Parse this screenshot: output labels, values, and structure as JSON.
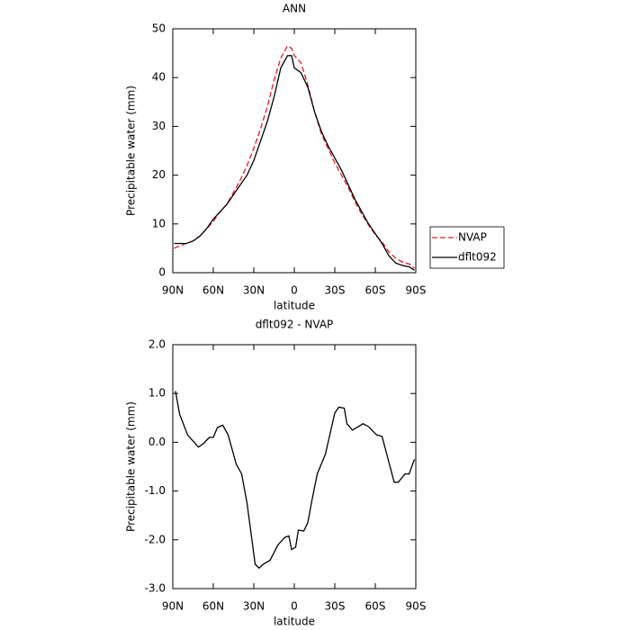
{
  "chart_data": [
    {
      "type": "line",
      "title": "ANN",
      "xlabel": "latitude",
      "ylabel": "Precipitable water (mm)",
      "x": [
        89,
        85,
        80,
        75,
        70,
        65,
        60,
        55,
        50,
        45,
        40,
        35,
        30,
        25,
        20,
        15,
        10,
        5,
        2,
        0,
        -5,
        -10,
        -15,
        -20,
        -25,
        -30,
        -35,
        -40,
        -45,
        -50,
        -55,
        -60,
        -65,
        -70,
        -75,
        -80,
        -85,
        -89
      ],
      "series": [
        {
          "name": "NVAP",
          "color": "#e8191e",
          "dash": true,
          "values": [
            5,
            5.5,
            6,
            6.5,
            7.5,
            9,
            10.5,
            12.5,
            14,
            16.5,
            19,
            22,
            25.5,
            29.5,
            34,
            39.5,
            44,
            46.5,
            46,
            44.5,
            43,
            38.5,
            33,
            28.5,
            25.5,
            22.5,
            20,
            17.5,
            14.5,
            12,
            9.8,
            7.8,
            6.3,
            4.3,
            3,
            2.2,
            1.8,
            0.9
          ]
        },
        {
          "name": "dflt092",
          "color": "#000000",
          "dash": false,
          "values": [
            6,
            6,
            6,
            6.5,
            7.5,
            9,
            11,
            12.5,
            14,
            16,
            18,
            20,
            23,
            27,
            31,
            36,
            42,
            44.5,
            44.5,
            42,
            41,
            38,
            33,
            29,
            26,
            23.5,
            21,
            18,
            15,
            12.5,
            10,
            8,
            6,
            3.5,
            2,
            1.5,
            1.2,
            0.5
          ]
        }
      ],
      "xlim": [
        90,
        -90
      ],
      "xticks": [
        {
          "value": 90,
          "label": "90N"
        },
        {
          "value": 60,
          "label": "60N"
        },
        {
          "value": 30,
          "label": "30N"
        },
        0,
        {
          "value": -30,
          "label": "30S"
        },
        {
          "value": -60,
          "label": "60S"
        },
        {
          "value": -90,
          "label": "90S"
        }
      ],
      "ylim": [
        0,
        50
      ],
      "yticks": [
        0,
        10,
        20,
        30,
        40,
        50
      ],
      "legend": "right"
    },
    {
      "type": "line",
      "title": "dflt092 - NVAP",
      "xlabel": "latitude",
      "ylabel": "Precipitable water (mm)",
      "x": [
        88,
        85,
        79,
        71,
        67,
        63,
        60,
        57,
        53,
        49,
        43,
        39,
        35,
        29,
        26,
        23,
        18,
        12,
        7,
        4,
        2,
        -1,
        -3,
        -7,
        -10,
        -13,
        -17,
        -23,
        -30,
        -33,
        -37,
        -39,
        -43,
        -51,
        -55,
        -61,
        -65,
        -74,
        -77,
        -82,
        -85,
        -89
      ],
      "series": [
        {
          "color": "#000000",
          "dash": false,
          "values": [
            1.05,
            0.58,
            0.15,
            -0.1,
            -0.02,
            0.1,
            0.1,
            0.3,
            0.35,
            0.15,
            -0.45,
            -0.65,
            -1.25,
            -2.5,
            -2.58,
            -2.5,
            -2.42,
            -2.1,
            -1.95,
            -1.92,
            -2.2,
            -2.15,
            -1.8,
            -1.82,
            -1.65,
            -1.2,
            -0.65,
            -0.25,
            0.6,
            0.72,
            0.7,
            0.38,
            0.25,
            0.38,
            0.32,
            0.15,
            0.12,
            -0.82,
            -0.82,
            -0.65,
            -0.65,
            -0.35
          ]
        }
      ],
      "xlim": [
        90,
        -90
      ],
      "xticks": [
        {
          "value": 90,
          "label": "90N"
        },
        {
          "value": 60,
          "label": "60N"
        },
        {
          "value": 30,
          "label": "30N"
        },
        0,
        {
          "value": -30,
          "label": "30S"
        },
        {
          "value": -60,
          "label": "60S"
        },
        {
          "value": -90,
          "label": "90S"
        }
      ],
      "ylim": [
        -3,
        2
      ],
      "yticks": [
        {
          "value": -3,
          "label": "-3.0"
        },
        {
          "value": -2,
          "label": "-2.0"
        },
        {
          "value": -1,
          "label": "-1.0"
        },
        {
          "value": 0,
          "label": "0.0"
        },
        {
          "value": 1,
          "label": "1.0"
        },
        {
          "value": 2,
          "label": "2.0"
        }
      ]
    }
  ]
}
